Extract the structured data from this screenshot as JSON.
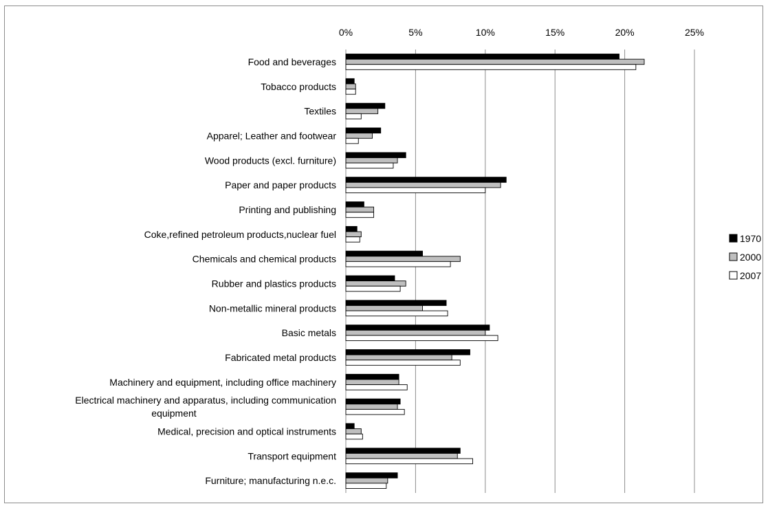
{
  "chart_data": {
    "type": "bar",
    "orientation": "horizontal",
    "x_axis_position": "top",
    "xlim": [
      0,
      0.25
    ],
    "x_ticks": [
      0,
      0.05,
      0.1,
      0.15,
      0.2,
      0.25
    ],
    "x_tick_labels": [
      "0%",
      "5%",
      "10%",
      "15%",
      "20%",
      "25%"
    ],
    "grid": "vertical",
    "legend_position": "right",
    "categories": [
      "Food and beverages",
      "Tobacco products",
      "Textiles",
      "Apparel; Leather and footwear",
      "Wood products (excl. furniture)",
      "Paper and paper products",
      "Printing and publishing",
      "Coke,refined petroleum products,nuclear fuel",
      "Chemicals and chemical products",
      "Rubber and plastics products",
      "Non-metallic mineral products",
      "Basic metals",
      "Fabricated metal products",
      "Machinery and equipment, including office machinery",
      "Electrical machinery and apparatus, including communication equipment",
      "Medical, precision and optical instruments",
      "Transport equipment",
      "Furniture; manufacturing n.e.c."
    ],
    "category_label_lines": [
      [
        "Food and beverages"
      ],
      [
        "Tobacco products"
      ],
      [
        "Textiles"
      ],
      [
        "Apparel; Leather and footwear"
      ],
      [
        "Wood products (excl. furniture)"
      ],
      [
        "Paper and paper products"
      ],
      [
        "Printing and publishing"
      ],
      [
        "Coke,refined petroleum products,nuclear fuel"
      ],
      [
        "Chemicals and chemical products"
      ],
      [
        "Rubber and plastics products"
      ],
      [
        "Non-metallic mineral products"
      ],
      [
        "Basic metals"
      ],
      [
        "Fabricated metal products"
      ],
      [
        "Machinery and equipment, including office machinery"
      ],
      [
        "Electrical machinery and apparatus, including communication",
        "equipment"
      ],
      [
        "Medical, precision and optical instruments"
      ],
      [
        "Transport equipment"
      ],
      [
        "Furniture; manufacturing n.e.c."
      ]
    ],
    "series": [
      {
        "name": "1970",
        "fill": "#000000",
        "values": [
          0.196,
          0.006,
          0.028,
          0.025,
          0.043,
          0.115,
          0.013,
          0.008,
          0.055,
          0.035,
          0.072,
          0.103,
          0.089,
          0.038,
          0.039,
          0.006,
          0.082,
          0.037
        ]
      },
      {
        "name": "2000",
        "fill": "#bfbfbf",
        "values": [
          0.214,
          0.007,
          0.023,
          0.019,
          0.037,
          0.111,
          0.02,
          0.011,
          0.082,
          0.043,
          0.055,
          0.1,
          0.076,
          0.038,
          0.037,
          0.011,
          0.08,
          0.03
        ]
      },
      {
        "name": "2007",
        "fill": "#ffffff",
        "values": [
          0.208,
          0.007,
          0.011,
          0.009,
          0.034,
          0.1,
          0.02,
          0.01,
          0.075,
          0.039,
          0.073,
          0.109,
          0.082,
          0.044,
          0.042,
          0.012,
          0.091,
          0.029
        ]
      }
    ]
  }
}
